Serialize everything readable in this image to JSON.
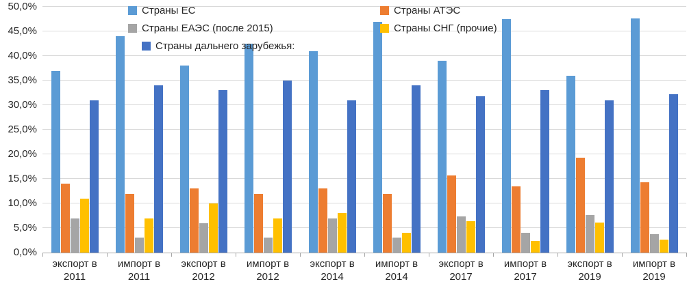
{
  "chart_data": {
    "type": "bar",
    "title": "",
    "categories": [
      "экспорт в 2011",
      "импорт в 2011",
      "экспорт в 2012",
      "импорт в 2012",
      "экспорт в 2014",
      "импорт в 2014",
      "экспорт в 2017",
      "импорт в 2017",
      "экспорт в 2019",
      "импорт в 2019"
    ],
    "series": [
      {
        "name": "Страны ЕС",
        "color": "#5B9BD5",
        "values": [
          37,
          44,
          38,
          42.5,
          41,
          47,
          39,
          47.5,
          36,
          47.7
        ]
      },
      {
        "name": "Страны АТЭС",
        "color": "#ED7D31",
        "values": [
          14,
          12,
          13,
          12,
          13,
          12,
          15.7,
          13.5,
          19.3,
          14.3
        ]
      },
      {
        "name": "Страны ЕАЭС (после 2015)",
        "color": "#A5A5A5",
        "values": [
          7,
          3,
          6,
          3,
          7,
          3,
          7.4,
          4,
          7.6,
          3.7
        ]
      },
      {
        "name": "Страны СНГ (прочие)",
        "color": "#FFC000",
        "values": [
          11,
          7,
          10,
          7,
          8,
          4,
          6.4,
          2.4,
          6.1,
          2.6
        ]
      },
      {
        "name": "Страны дальнего зарубежья:",
        "color": "#4472C4",
        "values": [
          31,
          34,
          33,
          35,
          31,
          34,
          31.8,
          33,
          31,
          32.2
        ]
      }
    ],
    "y_axis": {
      "min": 0,
      "max": 50,
      "step": 5,
      "unit": "%",
      "tick_labels": [
        "0,0%",
        "5,0%",
        "10,0%",
        "15,0%",
        "20,0%",
        "25,0%",
        "30,0%",
        "35,0%",
        "40,0%",
        "45,0%",
        "50,0%"
      ]
    },
    "grid": true,
    "legend": {
      "position": "top-inside",
      "entries": [
        "Страны ЕС",
        "Страны АТЭС",
        "Страны ЕАЭС (после 2015)",
        "Страны СНГ (прочие)",
        "Страны дальнего зарубежья:"
      ]
    },
    "colors": {
      "gridline": "#D9D9D9",
      "axis_line": "#A6A6A6",
      "text": "#262626",
      "background": "#FFFFFF"
    }
  }
}
